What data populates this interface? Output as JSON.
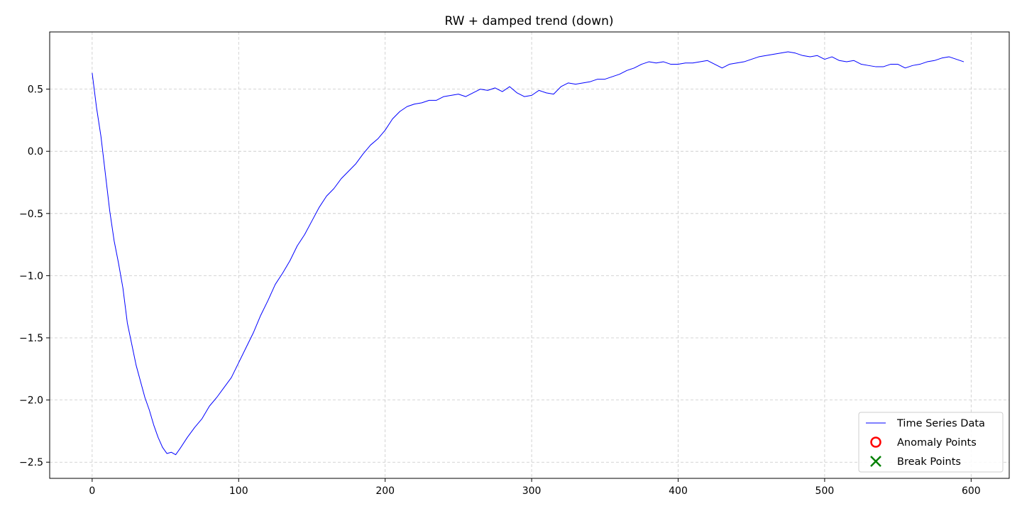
{
  "chart_data": {
    "type": "line",
    "title": "RW + damped trend (down)",
    "xlabel": "",
    "ylabel": "",
    "xlim": [
      -29,
      626
    ],
    "ylim": [
      -2.63,
      0.96
    ],
    "x_ticks": [
      0,
      100,
      200,
      300,
      400,
      500,
      600
    ],
    "x_tick_labels": [
      "0",
      "100",
      "200",
      "300",
      "400",
      "500",
      "600"
    ],
    "y_ticks": [
      0.5,
      0.0,
      -0.5,
      -1.0,
      -1.5,
      -2.0,
      -2.5
    ],
    "y_tick_labels": [
      "0.5",
      "0.0",
      "−0.5",
      "−1.0",
      "−1.5",
      "−2.0",
      "−2.5"
    ],
    "grid": true,
    "legend_position": "bottom-right",
    "legend": [
      {
        "label": "Time Series Data",
        "marker": "line",
        "color": "#0000ff"
      },
      {
        "label": "Anomaly Points",
        "marker": "circle",
        "color": "#ff0000"
      },
      {
        "label": "Break Points",
        "marker": "x",
        "color": "#008000"
      }
    ],
    "series": [
      {
        "name": "Time Series Data",
        "color": "#0000ff",
        "points": [
          [
            0,
            0.63
          ],
          [
            3,
            0.35
          ],
          [
            6,
            0.12
          ],
          [
            9,
            -0.18
          ],
          [
            12,
            -0.48
          ],
          [
            15,
            -0.72
          ],
          [
            18,
            -0.9
          ],
          [
            21,
            -1.1
          ],
          [
            24,
            -1.38
          ],
          [
            27,
            -1.55
          ],
          [
            30,
            -1.72
          ],
          [
            33,
            -1.85
          ],
          [
            36,
            -1.98
          ],
          [
            39,
            -2.08
          ],
          [
            42,
            -2.2
          ],
          [
            45,
            -2.3
          ],
          [
            48,
            -2.38
          ],
          [
            51,
            -2.43
          ],
          [
            54,
            -2.42
          ],
          [
            57,
            -2.44
          ],
          [
            60,
            -2.39
          ],
          [
            65,
            -2.3
          ],
          [
            70,
            -2.22
          ],
          [
            75,
            -2.15
          ],
          [
            80,
            -2.05
          ],
          [
            85,
            -1.98
          ],
          [
            90,
            -1.9
          ],
          [
            95,
            -1.82
          ],
          [
            100,
            -1.7
          ],
          [
            105,
            -1.58
          ],
          [
            110,
            -1.46
          ],
          [
            115,
            -1.32
          ],
          [
            120,
            -1.2
          ],
          [
            125,
            -1.07
          ],
          [
            130,
            -0.98
          ],
          [
            135,
            -0.88
          ],
          [
            140,
            -0.76
          ],
          [
            145,
            -0.67
          ],
          [
            150,
            -0.56
          ],
          [
            155,
            -0.45
          ],
          [
            160,
            -0.36
          ],
          [
            165,
            -0.3
          ],
          [
            170,
            -0.22
          ],
          [
            175,
            -0.16
          ],
          [
            180,
            -0.1
          ],
          [
            185,
            -0.02
          ],
          [
            190,
            0.05
          ],
          [
            195,
            0.1
          ],
          [
            200,
            0.17
          ],
          [
            205,
            0.26
          ],
          [
            210,
            0.32
          ],
          [
            215,
            0.36
          ],
          [
            220,
            0.38
          ],
          [
            225,
            0.39
          ],
          [
            230,
            0.41
          ],
          [
            235,
            0.41
          ],
          [
            240,
            0.44
          ],
          [
            245,
            0.45
          ],
          [
            250,
            0.46
          ],
          [
            255,
            0.44
          ],
          [
            260,
            0.47
          ],
          [
            265,
            0.5
          ],
          [
            270,
            0.49
          ],
          [
            275,
            0.51
          ],
          [
            280,
            0.48
          ],
          [
            285,
            0.52
          ],
          [
            290,
            0.47
          ],
          [
            295,
            0.44
          ],
          [
            300,
            0.45
          ],
          [
            305,
            0.49
          ],
          [
            310,
            0.47
          ],
          [
            315,
            0.46
          ],
          [
            320,
            0.52
          ],
          [
            325,
            0.55
          ],
          [
            330,
            0.54
          ],
          [
            335,
            0.55
          ],
          [
            340,
            0.56
          ],
          [
            345,
            0.58
          ],
          [
            350,
            0.58
          ],
          [
            355,
            0.6
          ],
          [
            360,
            0.62
          ],
          [
            365,
            0.65
          ],
          [
            370,
            0.67
          ],
          [
            375,
            0.7
          ],
          [
            380,
            0.72
          ],
          [
            385,
            0.71
          ],
          [
            390,
            0.72
          ],
          [
            395,
            0.7
          ],
          [
            400,
            0.7
          ],
          [
            405,
            0.71
          ],
          [
            410,
            0.71
          ],
          [
            415,
            0.72
          ],
          [
            420,
            0.73
          ],
          [
            425,
            0.7
          ],
          [
            430,
            0.67
          ],
          [
            435,
            0.7
          ],
          [
            440,
            0.71
          ],
          [
            445,
            0.72
          ],
          [
            450,
            0.74
          ],
          [
            455,
            0.76
          ],
          [
            460,
            0.77
          ],
          [
            465,
            0.78
          ],
          [
            470,
            0.79
          ],
          [
            475,
            0.8
          ],
          [
            480,
            0.79
          ],
          [
            485,
            0.77
          ],
          [
            490,
            0.76
          ],
          [
            495,
            0.77
          ],
          [
            500,
            0.74
          ],
          [
            505,
            0.76
          ],
          [
            510,
            0.73
          ],
          [
            515,
            0.72
          ],
          [
            520,
            0.73
          ],
          [
            525,
            0.7
          ],
          [
            530,
            0.69
          ],
          [
            535,
            0.68
          ],
          [
            540,
            0.68
          ],
          [
            545,
            0.7
          ],
          [
            550,
            0.7
          ],
          [
            555,
            0.67
          ],
          [
            560,
            0.69
          ],
          [
            565,
            0.7
          ],
          [
            570,
            0.72
          ],
          [
            575,
            0.73
          ],
          [
            580,
            0.75
          ],
          [
            585,
            0.76
          ],
          [
            590,
            0.74
          ],
          [
            595,
            0.72
          ]
        ]
      }
    ]
  }
}
